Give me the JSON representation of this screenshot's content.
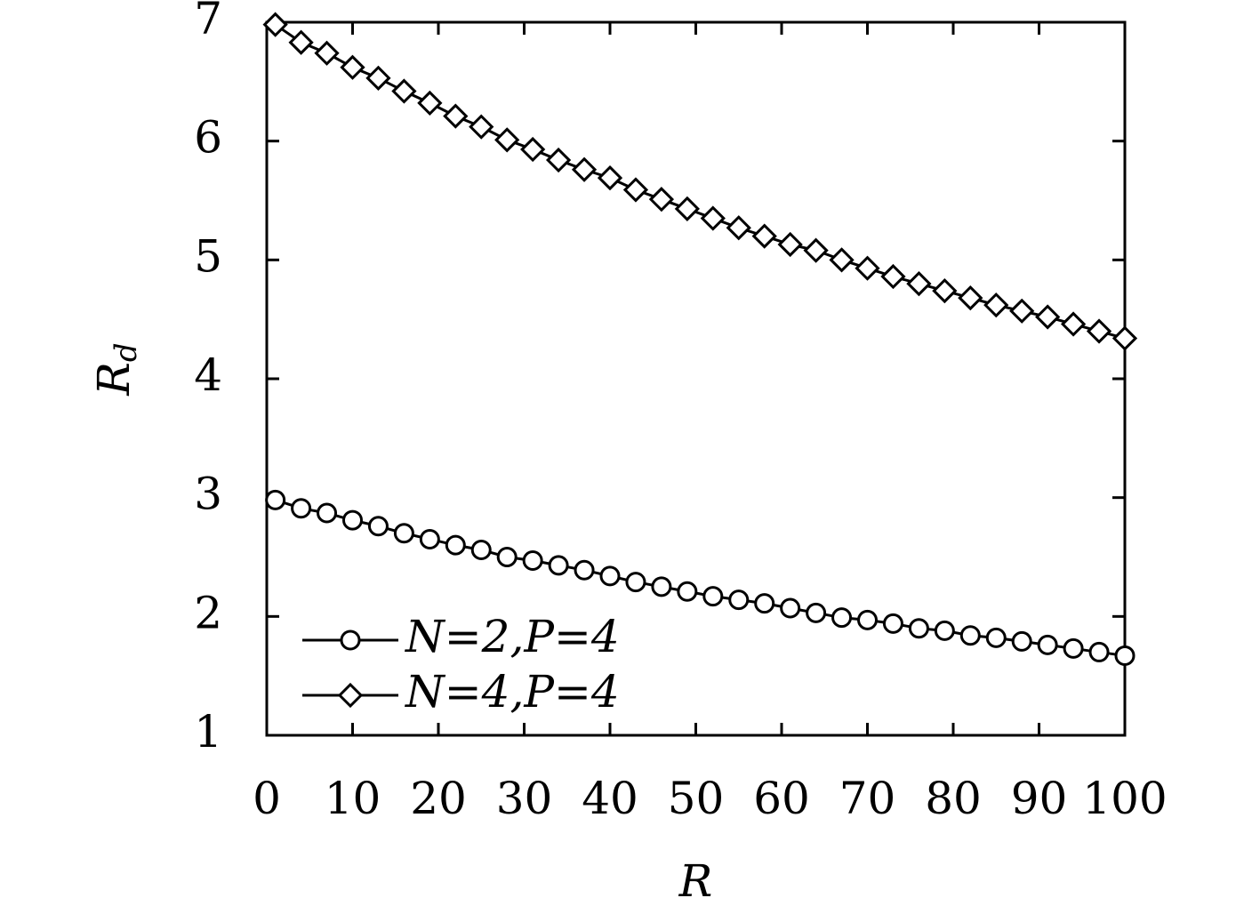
{
  "chart_data": {
    "type": "line",
    "xlabel": "R",
    "ylabel": "R",
    "ylabel_sub": "d",
    "x": [
      1,
      4,
      7,
      10,
      13,
      16,
      19,
      22,
      25,
      28,
      31,
      34,
      37,
      40,
      43,
      46,
      49,
      52,
      55,
      58,
      61,
      64,
      67,
      70,
      73,
      76,
      79,
      82,
      85,
      88,
      91,
      94,
      97,
      100
    ],
    "series": [
      {
        "name": "N=2,P=4",
        "color": "#000000",
        "marker": "circle",
        "values": [
          2.98,
          2.91,
          2.87,
          2.81,
          2.76,
          2.7,
          2.65,
          2.6,
          2.56,
          2.5,
          2.47,
          2.43,
          2.39,
          2.34,
          2.29,
          2.25,
          2.21,
          2.17,
          2.14,
          2.11,
          2.07,
          2.03,
          1.99,
          1.97,
          1.94,
          1.9,
          1.88,
          1.84,
          1.82,
          1.79,
          1.76,
          1.73,
          1.7,
          1.67
        ]
      },
      {
        "name": "N=4,P=4",
        "color": "#000000",
        "marker": "diamond",
        "values": [
          6.98,
          6.83,
          6.74,
          6.62,
          6.53,
          6.42,
          6.32,
          6.21,
          6.12,
          6.01,
          5.93,
          5.84,
          5.76,
          5.69,
          5.59,
          5.51,
          5.43,
          5.35,
          5.27,
          5.2,
          5.13,
          5.08,
          5.0,
          4.93,
          4.86,
          4.8,
          4.74,
          4.68,
          4.62,
          4.57,
          4.52,
          4.46,
          4.4,
          4.34
        ]
      }
    ],
    "xlim": [
      0,
      100
    ],
    "xticks": [
      0,
      10,
      20,
      30,
      40,
      50,
      60,
      70,
      80,
      90,
      100
    ],
    "ylim": [
      1,
      7
    ],
    "yticks": [
      1,
      2,
      3,
      4,
      5,
      6,
      7
    ],
    "legend": "lower left",
    "grid": false
  }
}
